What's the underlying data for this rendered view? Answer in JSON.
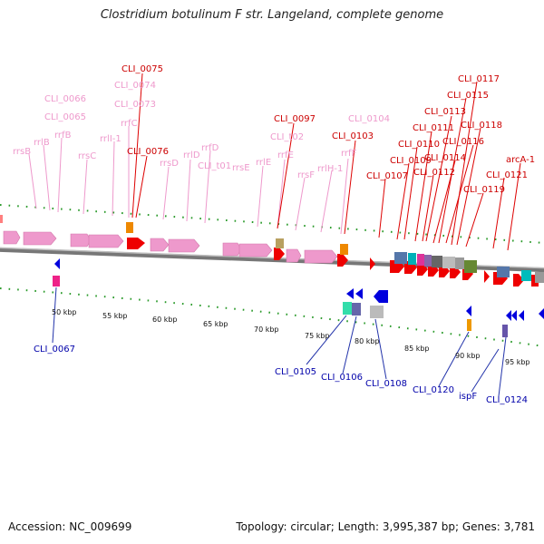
{
  "header": {
    "title": "Clostridium botulinum F str. Langeland, complete genome"
  },
  "footer": {
    "accession": "Accession: NC_009699",
    "topology": "Topology: circular; Length: 3,995,387 bp; Genes: 3,781"
  },
  "legend_colors": {
    "rRNA": "#ee99cc",
    "tRNA_label": "#e888c0",
    "cds_forward": "#ee0000",
    "cds_reverse": "#0000cc",
    "forward_label": "#cc0000",
    "reverse_label": "#0000aa"
  },
  "scale_ticks": [
    "50 kbp",
    "55 kbp",
    "60 kbp",
    "65 kbp",
    "70 kbp",
    "75 kbp",
    "80 kbp",
    "85 kbp",
    "90 kbp",
    "95 kbp"
  ],
  "labels_top_pink": [
    "rrsB",
    "rrlB",
    "rrfB",
    "rrsC",
    "rrlI-1",
    "rrfC",
    "CLI_0066",
    "CLI_0065",
    "CLI_0074",
    "CLI_0073",
    "rrsD",
    "rrlD",
    "rrfD",
    "CLI_t01",
    "rrsE",
    "rrlE",
    "rrfE",
    "CLI_t02",
    "rrsF",
    "rrlH-1",
    "rrfF",
    "CLI_0104"
  ],
  "labels_top_red": [
    "CLI_0075",
    "CLI_0076",
    "CLI_0097",
    "CLI_0103",
    "CLI_0107",
    "CLI_0109",
    "CLI_0110",
    "CLI_0111",
    "CLI_0112",
    "CLI_0113",
    "CLI_0114",
    "CLI_0115",
    "CLI_0116",
    "CLI_0117",
    "CLI_0118",
    "CLI_0119",
    "CLI_0121",
    "arcA-1"
  ],
  "labels_bottom_blue": [
    "CLI_0067",
    "CLI_0105",
    "CLI_0106",
    "CLI_0108",
    "CLI_0120",
    "ispF",
    "CLI_0124"
  ]
}
